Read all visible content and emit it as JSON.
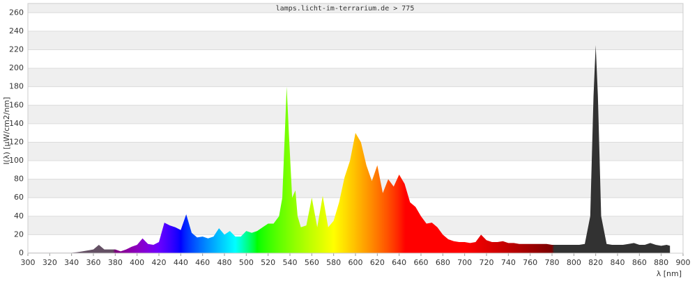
{
  "chart_data": {
    "type": "area",
    "title": "lamps.licht-im-terrarium.de > 775",
    "y_label": "I(λ) [µW/cm2/nm]",
    "x_label": "λ [nm]",
    "x": [
      300,
      305,
      310,
      315,
      320,
      325,
      330,
      335,
      340,
      345,
      350,
      355,
      360,
      365,
      370,
      375,
      380,
      385,
      390,
      395,
      400,
      405,
      410,
      415,
      420,
      425,
      430,
      435,
      440,
      445,
      450,
      455,
      460,
      465,
      470,
      475,
      480,
      485,
      490,
      495,
      500,
      505,
      510,
      515,
      520,
      525,
      530,
      533,
      535,
      537,
      539,
      542,
      545,
      547,
      550,
      555,
      560,
      565,
      570,
      575,
      580,
      585,
      590,
      595,
      600,
      605,
      610,
      615,
      620,
      625,
      630,
      635,
      640,
      645,
      650,
      655,
      660,
      665,
      670,
      675,
      680,
      685,
      690,
      695,
      700,
      705,
      710,
      715,
      720,
      725,
      730,
      735,
      740,
      745,
      750,
      755,
      760,
      765,
      770,
      775,
      780,
      785,
      790,
      795,
      800,
      805,
      810,
      815,
      818,
      820,
      822,
      825,
      830,
      835,
      840,
      845,
      850,
      855,
      860,
      865,
      870,
      875,
      880,
      885,
      888
    ],
    "values": [
      0.5,
      0.5,
      0.5,
      0.5,
      0.5,
      0.5,
      0.5,
      0.5,
      0.5,
      1,
      2,
      3,
      4,
      9,
      4,
      4,
      4,
      2,
      4,
      7,
      9,
      16,
      10,
      9,
      12,
      33,
      30,
      28,
      25,
      42,
      22,
      17,
      18,
      16,
      18,
      27,
      20,
      24,
      18,
      18,
      24,
      22,
      24,
      28,
      32,
      32,
      40,
      60,
      120,
      180,
      130,
      60,
      68,
      40,
      28,
      30,
      60,
      28,
      62,
      28,
      35,
      55,
      82,
      100,
      130,
      120,
      95,
      78,
      95,
      65,
      80,
      72,
      85,
      75,
      55,
      50,
      40,
      32,
      33,
      28,
      20,
      15,
      13,
      12,
      12,
      11,
      12,
      20,
      14,
      12,
      12,
      13,
      11,
      11,
      10,
      10,
      10,
      10,
      10,
      10,
      9,
      9,
      9,
      9,
      9,
      9,
      10,
      40,
      170,
      225,
      170,
      40,
      10,
      9,
      9,
      9,
      10,
      11,
      9,
      9,
      11,
      9,
      8,
      9,
      8
    ],
    "xlim": [
      300,
      900
    ],
    "xticks": [
      300,
      320,
      340,
      360,
      380,
      400,
      420,
      440,
      460,
      480,
      500,
      520,
      540,
      560,
      580,
      600,
      620,
      640,
      660,
      680,
      700,
      720,
      740,
      760,
      780,
      800,
      820,
      840,
      860,
      880,
      900
    ],
    "ylim": [
      0,
      270
    ],
    "yticks": [
      0,
      20,
      40,
      60,
      80,
      100,
      120,
      140,
      160,
      180,
      200,
      220,
      240,
      260
    ],
    "grid": true
  }
}
